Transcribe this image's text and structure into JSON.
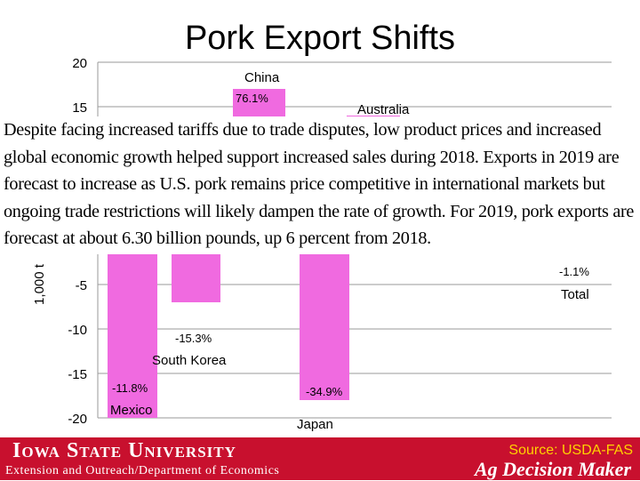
{
  "title": "Pork Export Shifts",
  "paragraph": "Despite facing increased tariffs due to trade disputes, low product prices and increased global economic growth helped support increased sales during 2018. Exports in 2019 are forecast to increase as U.S. pork remains price competitive in international markets but ongoing trade restrictions will likely dampen the rate of growth. For 2019, pork exports are forecast at about 6.30 billion pounds, up 6 percent from 2018.",
  "chart_data": {
    "type": "bar",
    "ylabel": "1,000 t",
    "ylim": [
      -20,
      20
    ],
    "yticks": [
      20,
      15,
      -5,
      -10,
      -15,
      -20
    ],
    "grid": true,
    "bars": [
      {
        "name": "Mexico",
        "value": -20,
        "label": "-11.8%"
      },
      {
        "name": "South Korea",
        "value": -7,
        "label": "-15.3%"
      },
      {
        "name": "China",
        "value": 17,
        "label": "76.1%"
      },
      {
        "name": "Japan",
        "value": -18,
        "label": "-34.9%"
      },
      {
        "name": "Australia",
        "value": 14,
        "label": ""
      },
      {
        "name": "Total",
        "value": -1.1,
        "label": "-1.1%"
      }
    ]
  },
  "footer": {
    "university": "Iowa State University",
    "department": "Extension and Outreach/Department of Economics",
    "source": "Source: USDA-FAS",
    "brand": "Ag Decision Maker"
  },
  "colors": {
    "bar": "#f06ae0",
    "footer": "#c8102e",
    "source_text": "#ffd200"
  }
}
